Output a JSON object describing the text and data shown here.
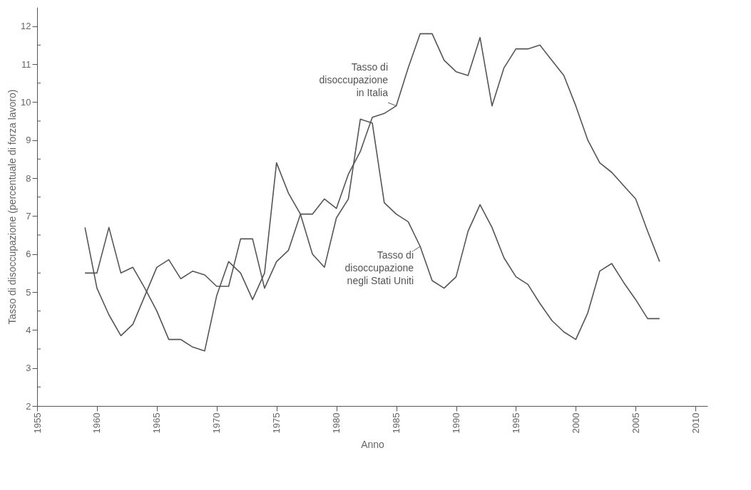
{
  "chart_data": {
    "type": "line",
    "xlabel": "Anno",
    "ylabel": "Tasso di disoccupazione (percentuale di forza lavoro)",
    "x": [
      1959,
      1960,
      1961,
      1962,
      1963,
      1964,
      1965,
      1966,
      1967,
      1968,
      1969,
      1970,
      1971,
      1972,
      1973,
      1974,
      1975,
      1976,
      1977,
      1978,
      1979,
      1980,
      1981,
      1982,
      1983,
      1984,
      1985,
      1986,
      1987,
      1988,
      1989,
      1990,
      1991,
      1992,
      1993,
      1994,
      1995,
      1996,
      1997,
      1998,
      1999,
      2000,
      2001,
      2002,
      2003,
      2004,
      2005,
      2006,
      2007
    ],
    "series": [
      {
        "name": "Tasso di\ndisoccupazione\nin Italia",
        "color": "#555555",
        "values": [
          6.7,
          5.1,
          4.4,
          3.85,
          4.15,
          4.9,
          5.65,
          5.85,
          5.35,
          5.55,
          5.45,
          5.15,
          5.15,
          6.4,
          6.4,
          5.1,
          5.8,
          6.1,
          7.05,
          7.05,
          7.45,
          7.2,
          8.1,
          8.7,
          9.6,
          9.7,
          9.9,
          10.9,
          11.8,
          11.8,
          11.1,
          10.8,
          10.7,
          11.7,
          9.9,
          10.9,
          11.4,
          11.4,
          11.5,
          11.1,
          10.7,
          9.9,
          9.0,
          8.4,
          8.15,
          7.8,
          7.45,
          6.6,
          5.8
        ]
      },
      {
        "name": "Tasso di\ndisoccupazione\nnegli Stati Uniti",
        "color": "#555555",
        "values": [
          5.5,
          5.5,
          6.7,
          5.5,
          5.65,
          5.1,
          4.5,
          3.75,
          3.75,
          3.55,
          3.45,
          4.9,
          5.8,
          5.5,
          4.8,
          5.5,
          8.4,
          7.6,
          7.05,
          6.0,
          5.65,
          6.95,
          7.45,
          9.55,
          9.45,
          7.35,
          7.05,
          6.85,
          6.2,
          5.3,
          5.1,
          5.4,
          6.6,
          7.3,
          6.7,
          5.9,
          5.4,
          5.2,
          4.7,
          4.25,
          3.95,
          3.75,
          4.45,
          5.55,
          5.75,
          5.25,
          4.8,
          4.3,
          4.3
        ]
      }
    ],
    "xlim": [
      1955,
      2011
    ],
    "xticks": [
      1955,
      1960,
      1965,
      1970,
      1975,
      1980,
      1985,
      1990,
      1995,
      2000,
      2005,
      2010
    ],
    "ylim": [
      2,
      12.5
    ],
    "yticks": [
      2,
      {
        "value": 2.5,
        "label": null
      },
      3,
      {
        "value": 3.5,
        "label": null
      },
      4,
      {
        "value": 4.5,
        "label": null
      },
      5,
      {
        "value": 5.5,
        "label": null
      },
      6,
      {
        "value": 6.5,
        "label": null
      },
      7,
      {
        "value": 7.5,
        "label": null
      },
      8,
      {
        "value": 8.5,
        "label": null
      },
      9,
      {
        "value": 9.5,
        "label": null
      },
      10,
      {
        "value": 10.5,
        "label": null
      },
      11,
      {
        "value": 11.5,
        "label": null
      },
      12
    ],
    "grid": false,
    "marker": "none",
    "line_style": "solid"
  }
}
